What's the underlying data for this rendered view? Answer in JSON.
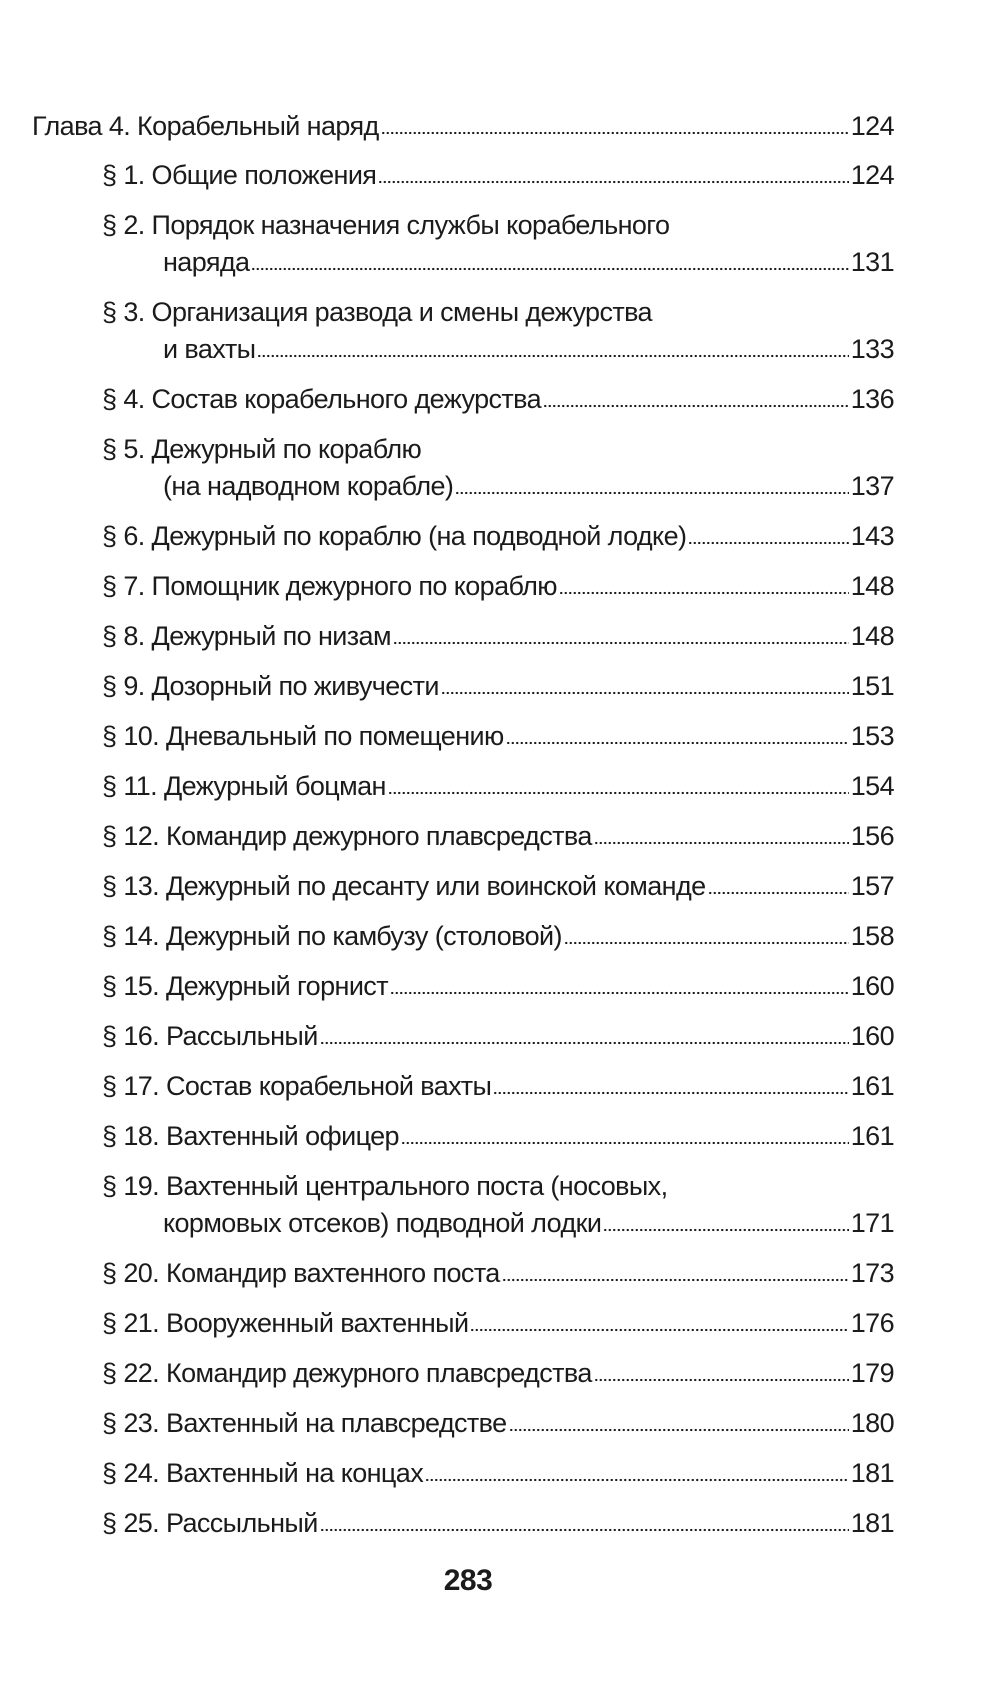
{
  "toc": {
    "entries": [
      {
        "kind": "chapter",
        "lines": [
          "Глава 4. Корабельный наряд"
        ],
        "page": "124"
      },
      {
        "kind": "section",
        "lines": [
          "§ 1. Общие положения"
        ],
        "page": "124"
      },
      {
        "kind": "section",
        "lines": [
          "§ 2. Порядок назначения службы корабельного",
          "наряда"
        ],
        "page": "131"
      },
      {
        "kind": "section",
        "lines": [
          "§ 3. Организация развода и смены дежурства",
          "и вахты"
        ],
        "page": "133"
      },
      {
        "kind": "section",
        "lines": [
          "§ 4. Состав корабельного дежурства"
        ],
        "page": "136"
      },
      {
        "kind": "section",
        "lines": [
          "§ 5. Дежурный по кораблю",
          "(на надводном корабле)"
        ],
        "page": "137"
      },
      {
        "kind": "section",
        "lines": [
          "§ 6. Дежурный по кораблю (на подводной лодке)"
        ],
        "page": "143"
      },
      {
        "kind": "section",
        "lines": [
          "§ 7. Помощник дежурного по кораблю"
        ],
        "page": "148"
      },
      {
        "kind": "section",
        "lines": [
          "§ 8. Дежурный по низам"
        ],
        "page": "148"
      },
      {
        "kind": "section",
        "lines": [
          "§ 9. Дозорный по живучести"
        ],
        "page": "151"
      },
      {
        "kind": "section",
        "lines": [
          "§ 10. Дневальный по помещению"
        ],
        "page": "153"
      },
      {
        "kind": "section",
        "lines": [
          "§ 11. Дежурный боцман"
        ],
        "page": "154"
      },
      {
        "kind": "section",
        "lines": [
          "§ 12. Командир дежурного плавсредства"
        ],
        "page": "156"
      },
      {
        "kind": "section",
        "lines": [
          "§ 13. Дежурный по десанту или воинской команде"
        ],
        "page": "157"
      },
      {
        "kind": "section",
        "lines": [
          "§ 14. Дежурный по камбузу (столовой)"
        ],
        "page": "158"
      },
      {
        "kind": "section",
        "lines": [
          "§ 15. Дежурный горнист"
        ],
        "page": "160"
      },
      {
        "kind": "section",
        "lines": [
          "§ 16. Рассыльный"
        ],
        "page": "160"
      },
      {
        "kind": "section",
        "lines": [
          "§ 17. Состав корабельной вахты"
        ],
        "page": "161"
      },
      {
        "kind": "section",
        "lines": [
          "§ 18. Вахтенный офицер"
        ],
        "page": "161"
      },
      {
        "kind": "section",
        "lines": [
          "§ 19. Вахтенный центрального поста (носовых,",
          "кормовых отсеков) подводной лодки"
        ],
        "page": "171"
      },
      {
        "kind": "section",
        "lines": [
          "§ 20. Командир вахтенного поста"
        ],
        "page": "173"
      },
      {
        "kind": "section",
        "lines": [
          "§ 21. Вооруженный вахтенный"
        ],
        "page": "176"
      },
      {
        "kind": "section",
        "lines": [
          "§ 22. Командир дежурного плавсредства"
        ],
        "page": "179"
      },
      {
        "kind": "section",
        "lines": [
          "§ 23. Вахтенный на плавсредстве"
        ],
        "page": "180"
      },
      {
        "kind": "section",
        "lines": [
          "§ 24. Вахтенный на концах"
        ],
        "page": "181"
      },
      {
        "kind": "section",
        "lines": [
          "§ 25. Рассыльный"
        ],
        "page": "181"
      }
    ]
  },
  "footer": {
    "page_number": "283"
  }
}
